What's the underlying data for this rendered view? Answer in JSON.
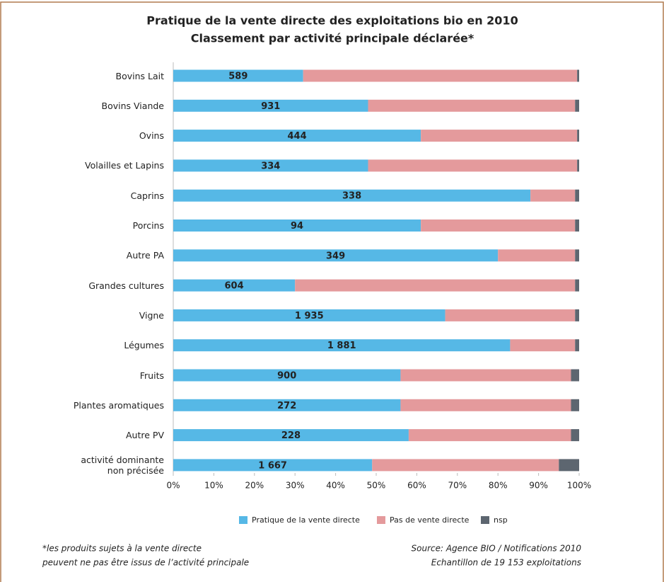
{
  "chart_data": {
    "type": "stacked-barh",
    "title": "Pratique de la vente directe des exploitations bio en 2010",
    "subtitle": "Classement par activité principale déclarée*",
    "categories": [
      "Bovins Lait",
      "Bovins Viande",
      "Ovins",
      "Volailles et Lapins",
      "Caprins",
      "Porcins",
      "Autre PA",
      "Grandes cultures",
      "Vigne",
      "Légumes",
      "Fruits",
      "Plantes aromatiques",
      "Autre PV",
      "activité dominante\nnon précisée"
    ],
    "series": [
      {
        "name": "Pratique de la vente directe",
        "color": "#56b8e6",
        "values": [
          32,
          48,
          61,
          48,
          88,
          61,
          80,
          30,
          67,
          83,
          56,
          56,
          58,
          49
        ]
      },
      {
        "name": "Pas de vente directe",
        "color": "#e49a9c",
        "values": [
          67.5,
          51,
          38.5,
          51.5,
          11,
          38,
          19,
          69,
          32,
          16,
          42,
          42,
          40,
          46
        ]
      },
      {
        "name": "nsp",
        "color": "#5d6670",
        "values": [
          0.5,
          1,
          0.5,
          0.5,
          1,
          1,
          1,
          1,
          1,
          1,
          2,
          2,
          2,
          5
        ]
      }
    ],
    "count_labels": [
      "589",
      "931",
      "444",
      "334",
      "338",
      "94",
      "349",
      "604",
      "1 935",
      "1 881",
      "900",
      "272",
      "228",
      "1 667"
    ],
    "xlim": [
      0,
      100
    ],
    "xticks": [
      {
        "value": 0,
        "label": "0%"
      },
      {
        "value": 10,
        "label": "10%"
      },
      {
        "value": 20,
        "label": "20%"
      },
      {
        "value": 30,
        "label": "30%"
      },
      {
        "value": 40,
        "label": "40%"
      },
      {
        "value": 50,
        "label": "50%"
      },
      {
        "value": 60,
        "label": "60%"
      },
      {
        "value": 70,
        "label": "70%"
      },
      {
        "value": 80,
        "label": "80%"
      },
      {
        "value": 90,
        "label": "90%"
      },
      {
        "value": 100,
        "label": "100%"
      }
    ],
    "footnote": [
      "*les produits sujets à la vente directe",
      "peuvent ne pas être issus de l’activité principale"
    ],
    "source": [
      "Source: Agence BIO / Notifications 2010",
      "Echantillon de 19 153 exploitations"
    ]
  }
}
